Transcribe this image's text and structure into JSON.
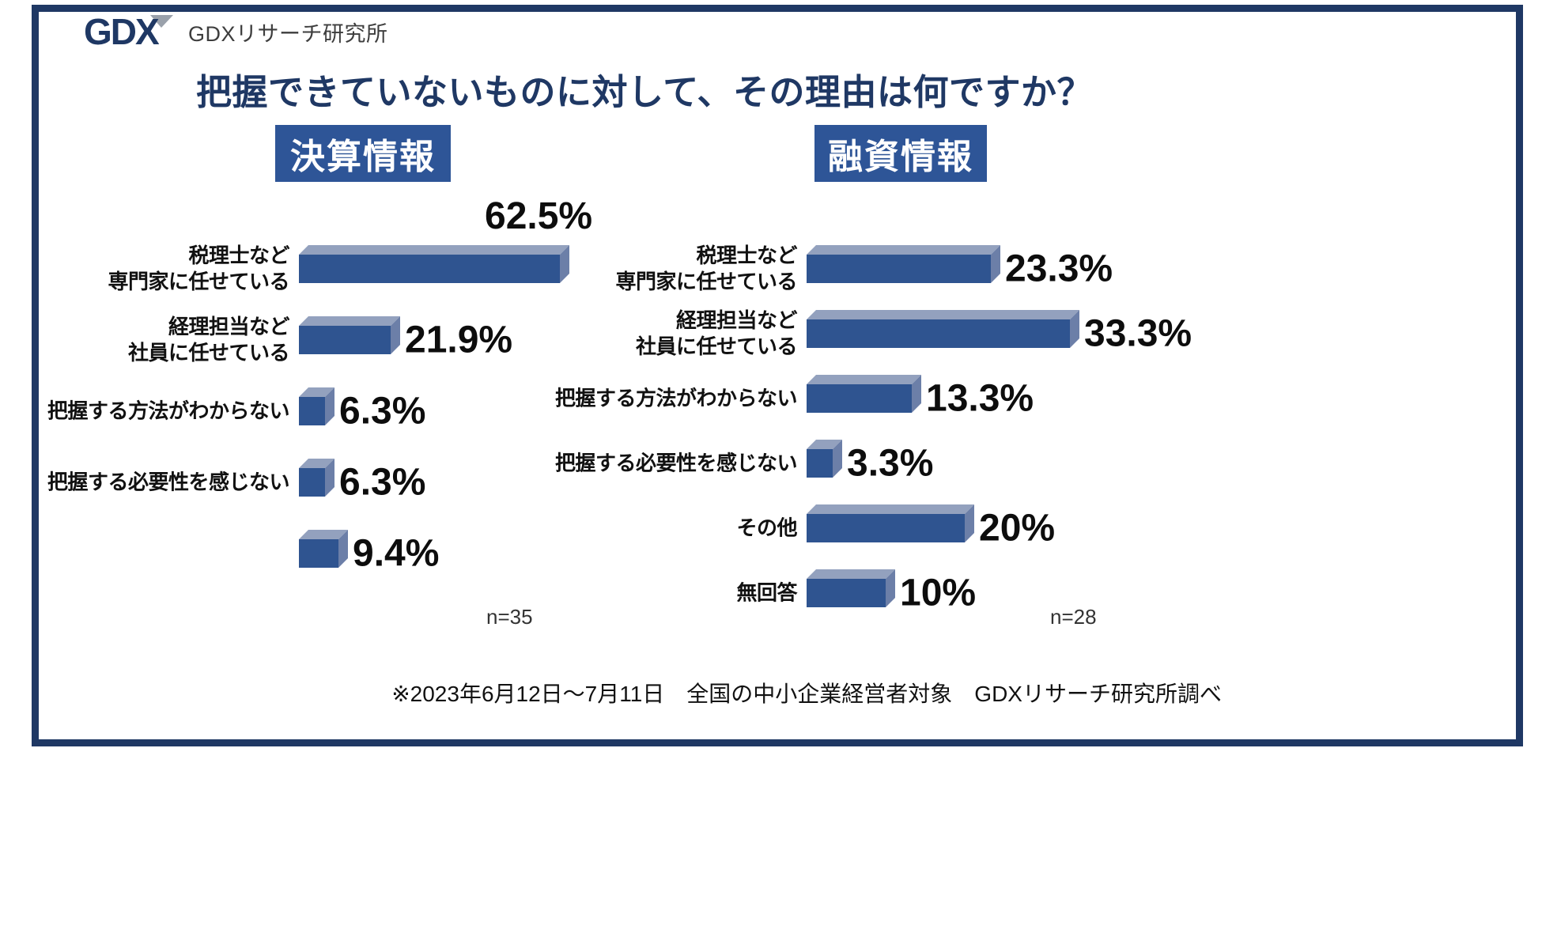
{
  "page": {
    "logo_mark": "GDX",
    "logo_text": "GDXリサーチ研究所",
    "title": "把握できていないものに対して、その理由は何ですか？",
    "footnote": "※2023年6月12日～7月11日　全国の中小企業経営者対象　GDXリサーチ研究所調べ"
  },
  "colors": {
    "navy": "#1F3864",
    "badge_bg": "#2E5597",
    "bar_front": "#2F5490",
    "bar_top_face": "#93A1BE",
    "bar_side_face": "#6C7FA8"
  },
  "chart_data": [
    {
      "type": "bar",
      "orientation": "horizontal",
      "title": "決算情報",
      "unit": "%",
      "categories": [
        "税理士など\n専門家に任せている",
        "経理担当など\n社員に任せている",
        "把握する方法がわからない",
        "把握する必要性を感じない",
        ""
      ],
      "values": [
        62.5,
        21.9,
        6.3,
        6.3,
        9.4
      ],
      "value_labels": [
        "62.5%",
        "21.9%",
        "6.3%",
        "6.3%",
        "9.4%"
      ],
      "sample_size": "n=35",
      "xlim": [
        0,
        65
      ],
      "grid": false,
      "legend": "none"
    },
    {
      "type": "bar",
      "orientation": "horizontal",
      "title": "融資情報",
      "unit": "%",
      "categories": [
        "税理士など\n専門家に任せている",
        "経理担当など\n社員に任せている",
        "把握する方法がわからない",
        "把握する必要性を感じない",
        "その他",
        "無回答"
      ],
      "values": [
        23.3,
        33.3,
        13.3,
        3.3,
        20,
        10
      ],
      "value_labels": [
        "23.3%",
        "33.3%",
        "13.3%",
        "3.3%",
        "20%",
        "10%"
      ],
      "sample_size": "n=28",
      "xlim": [
        0,
        35
      ],
      "grid": false,
      "legend": "none"
    }
  ]
}
